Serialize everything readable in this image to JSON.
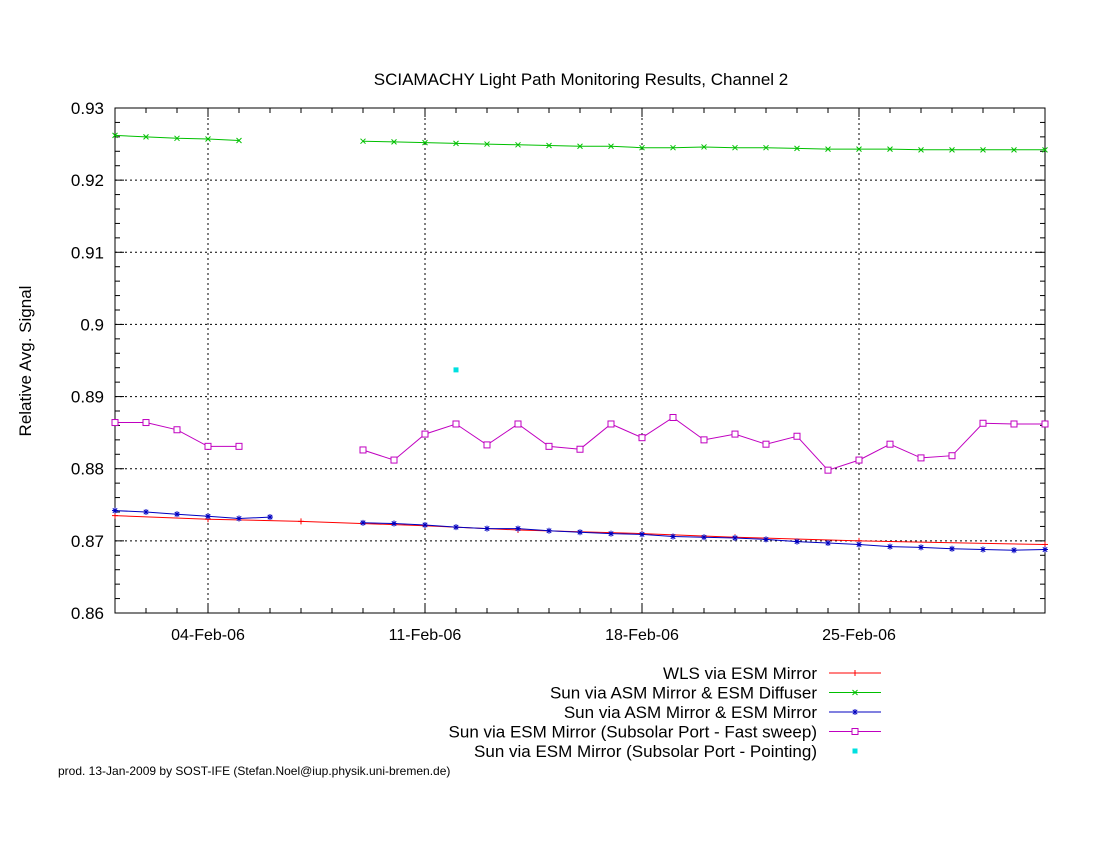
{
  "chart_data": {
    "type": "line",
    "title": "SCIAMACHY Light Path Monitoring Results, Channel 2",
    "xlabel": "",
    "ylabel": "Relative Avg. Signal",
    "xlim": [
      "2006-02-01",
      "2006-03-03"
    ],
    "ylim": [
      0.86,
      0.93
    ],
    "grid": true,
    "legend_position": "bottom",
    "x_ticks": [
      "04-Feb-06",
      "11-Feb-06",
      "18-Feb-06",
      "25-Feb-06"
    ],
    "x_tick_dates": [
      "2006-02-04",
      "2006-02-11",
      "2006-02-18",
      "2006-02-25"
    ],
    "y_ticks": [
      0.86,
      0.87,
      0.88,
      0.89,
      0.9,
      0.91,
      0.92,
      0.93
    ],
    "y_tick_labels": [
      "0.86",
      "0.87",
      "0.88",
      "0.89",
      "0.9",
      "0.91",
      "0.92",
      "0.93"
    ],
    "series": [
      {
        "name": "WLS via ESM Mirror",
        "color": "#ff0000",
        "marker": "plus",
        "x": [
          "2006-02-01",
          "2006-02-04",
          "2006-02-07",
          "2006-02-11",
          "2006-02-14",
          "2006-02-18",
          "2006-02-21",
          "2006-02-25",
          "2006-03-03"
        ],
        "y": [
          0.8735,
          0.873,
          0.8727,
          0.8721,
          0.8715,
          0.871,
          0.8705,
          0.87,
          0.8695
        ]
      },
      {
        "name": "Sun via ASM Mirror & ESM Diffuser",
        "color": "#00c000",
        "marker": "x",
        "x": [
          "2006-02-01",
          "2006-02-02",
          "2006-02-03",
          "2006-02-04",
          "2006-02-05",
          "2006-02-09",
          "2006-02-10",
          "2006-02-11",
          "2006-02-12",
          "2006-02-13",
          "2006-02-14",
          "2006-02-15",
          "2006-02-16",
          "2006-02-17",
          "2006-02-18",
          "2006-02-19",
          "2006-02-20",
          "2006-02-21",
          "2006-02-22",
          "2006-02-23",
          "2006-02-24",
          "2006-02-25",
          "2006-02-26",
          "2006-02-27",
          "2006-02-28",
          "2006-03-01",
          "2006-03-02",
          "2006-03-03"
        ],
        "y": [
          0.9262,
          0.926,
          0.9258,
          0.9257,
          0.9255,
          0.9254,
          0.9253,
          0.9252,
          0.9251,
          0.925,
          0.9249,
          0.9248,
          0.9247,
          0.9247,
          0.9245,
          0.9245,
          0.9246,
          0.9245,
          0.9245,
          0.9244,
          0.9243,
          0.9243,
          0.9243,
          0.9242,
          0.9242,
          0.9242,
          0.9242,
          0.9242
        ],
        "gap_after_index": 4
      },
      {
        "name": "Sun via ASM Mirror & ESM Mirror",
        "color": "#0000c0",
        "marker": "star",
        "x": [
          "2006-02-01",
          "2006-02-02",
          "2006-02-03",
          "2006-02-04",
          "2006-02-05",
          "2006-02-06",
          "2006-02-09",
          "2006-02-10",
          "2006-02-11",
          "2006-02-12",
          "2006-02-13",
          "2006-02-14",
          "2006-02-15",
          "2006-02-16",
          "2006-02-17",
          "2006-02-18",
          "2006-02-19",
          "2006-02-20",
          "2006-02-21",
          "2006-02-22",
          "2006-02-23",
          "2006-02-24",
          "2006-02-25",
          "2006-02-26",
          "2006-02-27",
          "2006-02-28",
          "2006-03-01",
          "2006-03-02",
          "2006-03-03"
        ],
        "y": [
          0.8742,
          0.874,
          0.8737,
          0.8734,
          0.8731,
          0.8733,
          0.8725,
          0.8724,
          0.8722,
          0.8719,
          0.8717,
          0.8717,
          0.8714,
          0.8712,
          0.871,
          0.8709,
          0.8706,
          0.8705,
          0.8704,
          0.8702,
          0.8699,
          0.8697,
          0.8695,
          0.8692,
          0.8691,
          0.8689,
          0.8688,
          0.8687,
          0.8688
        ],
        "gap_after_index": 5
      },
      {
        "name": "Sun via ESM Mirror (Subsolar Port - Fast sweep)",
        "color": "#c000c0",
        "marker": "square",
        "x": [
          "2006-02-01",
          "2006-02-02",
          "2006-02-03",
          "2006-02-04",
          "2006-02-05",
          "2006-02-09",
          "2006-02-10",
          "2006-02-11",
          "2006-02-12",
          "2006-02-13",
          "2006-02-14",
          "2006-02-15",
          "2006-02-16",
          "2006-02-17",
          "2006-02-18",
          "2006-02-19",
          "2006-02-20",
          "2006-02-21",
          "2006-02-22",
          "2006-02-23",
          "2006-02-24",
          "2006-02-25",
          "2006-02-26",
          "2006-02-27",
          "2006-02-28",
          "2006-03-01",
          "2006-03-02",
          "2006-03-03"
        ],
        "y": [
          0.8864,
          0.8864,
          0.8854,
          0.8831,
          0.8831,
          0.8826,
          0.8812,
          0.8848,
          0.8862,
          0.8833,
          0.8862,
          0.8831,
          0.8827,
          0.8862,
          0.8843,
          0.8871,
          0.884,
          0.8848,
          0.8834,
          0.8845,
          0.8798,
          0.8812,
          0.8834,
          0.8815,
          0.8818,
          0.8863,
          0.8862,
          0.8862
        ],
        "gap_after_index": 4
      },
      {
        "name": "Sun via ESM Mirror (Subsolar Port - Pointing)",
        "color": "#00e0e0",
        "marker": "dot",
        "x": [
          "2006-02-12"
        ],
        "y": [
          0.8937
        ]
      }
    ],
    "footer": "prod. 13-Jan-2009 by SOST-IFE (Stefan.Noel@iup.physik.uni-bremen.de)"
  }
}
